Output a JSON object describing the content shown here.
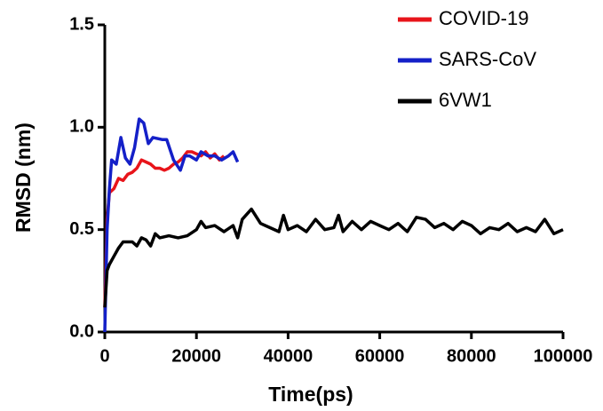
{
  "chart_data": {
    "type": "line",
    "xlabel": "Time(ps)",
    "ylabel": "RMSD (nm)",
    "xlim": [
      0,
      100000
    ],
    "xticks": [
      0,
      20000,
      40000,
      60000,
      80000,
      100000
    ],
    "ylim": [
      0,
      1.5
    ],
    "yticks": [
      {
        "value": 0,
        "label": "0.0"
      },
      {
        "value": 0.5,
        "label": "0.5"
      },
      {
        "value": 1,
        "label": "1.0"
      },
      {
        "value": 1.5,
        "label": "1.5"
      }
    ],
    "grid": false,
    "legend": "top-right",
    "series": [
      {
        "name": "COVID-19",
        "color": "#e8141a",
        "x": [
          0,
          500,
          1000,
          2000,
          3000,
          4000,
          5000,
          6000,
          7000,
          8000,
          9000,
          10000,
          11000,
          12000,
          13000,
          14000,
          15000,
          16000,
          17000,
          18000,
          19000,
          20000,
          21000,
          22000,
          23000,
          24000,
          25000,
          26000
        ],
        "values": [
          0.12,
          0.55,
          0.68,
          0.7,
          0.75,
          0.74,
          0.77,
          0.78,
          0.8,
          0.84,
          0.83,
          0.82,
          0.8,
          0.8,
          0.79,
          0.8,
          0.82,
          0.83,
          0.85,
          0.88,
          0.88,
          0.87,
          0.86,
          0.88,
          0.85,
          0.87,
          0.84,
          0.86
        ]
      },
      {
        "name": "SARS-CoV",
        "color": "#1420c8",
        "x": [
          0,
          500,
          1000,
          1500,
          2500,
          3500,
          4500,
          5500,
          6500,
          7500,
          8500,
          9500,
          10500,
          12500,
          13500,
          15000,
          16500,
          17500,
          18500,
          20000,
          21000,
          22500,
          24000,
          25500,
          27000,
          28000,
          29000
        ],
        "values": [
          0.0,
          0.5,
          0.7,
          0.84,
          0.82,
          0.95,
          0.85,
          0.82,
          0.9,
          1.04,
          1.02,
          0.92,
          0.95,
          0.94,
          0.94,
          0.84,
          0.79,
          0.86,
          0.86,
          0.84,
          0.88,
          0.86,
          0.86,
          0.84,
          0.86,
          0.88,
          0.83
        ]
      },
      {
        "name": "6VW1",
        "color": "#000000",
        "x": [
          0,
          500,
          1000,
          2000,
          3000,
          4000,
          6000,
          7000,
          8000,
          9000,
          10000,
          11000,
          12000,
          14000,
          16000,
          18000,
          20000,
          21000,
          22000,
          24000,
          26000,
          28000,
          29000,
          30000,
          32000,
          34000,
          36000,
          38000,
          39000,
          40000,
          42000,
          44000,
          46000,
          48000,
          50000,
          51000,
          52000,
          54000,
          56000,
          58000,
          60000,
          62000,
          64000,
          66000,
          68000,
          70000,
          72000,
          74000,
          76000,
          78000,
          80000,
          82000,
          84000,
          86000,
          88000,
          90000,
          92000,
          94000,
          96000,
          98000,
          100000
        ],
        "values": [
          0.12,
          0.3,
          0.33,
          0.37,
          0.41,
          0.44,
          0.44,
          0.42,
          0.46,
          0.45,
          0.42,
          0.48,
          0.46,
          0.47,
          0.46,
          0.47,
          0.5,
          0.54,
          0.51,
          0.52,
          0.49,
          0.52,
          0.46,
          0.55,
          0.6,
          0.53,
          0.51,
          0.49,
          0.57,
          0.5,
          0.52,
          0.49,
          0.55,
          0.5,
          0.51,
          0.57,
          0.49,
          0.54,
          0.5,
          0.54,
          0.52,
          0.5,
          0.53,
          0.49,
          0.56,
          0.55,
          0.51,
          0.53,
          0.5,
          0.54,
          0.52,
          0.48,
          0.51,
          0.5,
          0.53,
          0.49,
          0.51,
          0.49,
          0.55,
          0.48,
          0.5
        ]
      }
    ]
  }
}
